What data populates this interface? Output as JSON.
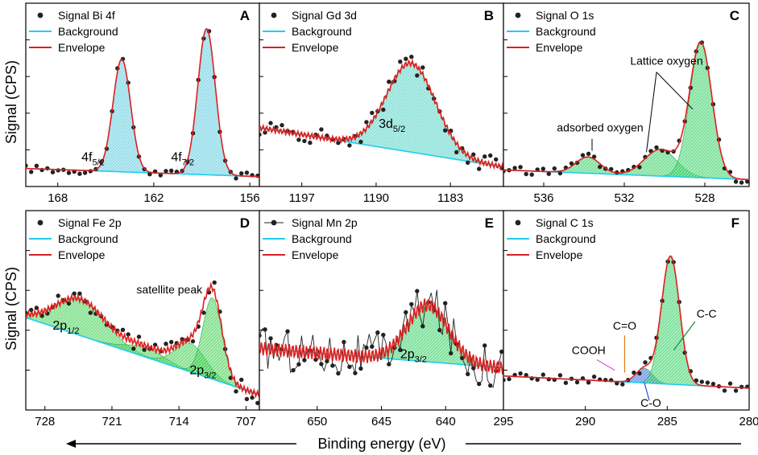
{
  "figure": {
    "ylabel": "Signal (CPS)",
    "xlabel": "Binding energy (eV)"
  },
  "chart_data": [
    {
      "type": "line",
      "label": "A",
      "legend": [
        "Signal Bi 4f",
        "Background",
        "Envelope"
      ],
      "xlim": [
        170,
        155.4
      ],
      "xticks": [
        168,
        162,
        156
      ],
      "background": {
        "start": 20,
        "end": 9
      },
      "peaks": [
        {
          "name": "4f5/2",
          "center": 164.0,
          "height": 152,
          "width": 0.55
        },
        {
          "name": "4f7/2",
          "center": 158.7,
          "height": 197,
          "width": 0.55
        }
      ],
      "ymax": 230,
      "fill": "#4fc6dd",
      "annotations": [
        {
          "text": "4f",
          "sub": "5/2",
          "x": 165.8,
          "y": 30
        },
        {
          "text": "4f",
          "sub": "7/2",
          "x": 160.2,
          "y": 30
        }
      ]
    },
    {
      "type": "line",
      "label": "B",
      "legend": [
        "Signal Gd 3d",
        "Background",
        "Envelope"
      ],
      "xlim": [
        1201,
        1178
      ],
      "xticks": [
        1197,
        1190,
        1183
      ],
      "background": {
        "start": 75,
        "end": 22
      },
      "peaks": [
        {
          "name": "3d5/2",
          "center": 1186.7,
          "height": 120,
          "width": 2.3
        }
      ],
      "ymax": 230,
      "fill": "#3fd0c0",
      "annotations": [
        {
          "text": "3d",
          "sub": "5/2",
          "x": 1188.5,
          "y": 75
        }
      ]
    },
    {
      "type": "line",
      "label": "C",
      "legend": [
        "Signal O 1s",
        "Background",
        "Envelope"
      ],
      "xlim": [
        538,
        525.8
      ],
      "xticks": [
        536,
        532,
        528
      ],
      "background": {
        "start": 18,
        "end": 5
      },
      "peaks": [
        {
          "name": "adsorbed oxygen",
          "center": 533.8,
          "height": 22,
          "width": 0.6
        },
        {
          "name": "lattice 1",
          "center": 530.2,
          "height": 36,
          "width": 0.8
        },
        {
          "name": "lattice 2",
          "center": 528.2,
          "height": 182,
          "width": 0.55
        }
      ],
      "ymax": 230,
      "fill": "#22cc55",
      "annotations": [
        {
          "text": "Lattice oxygen",
          "x": 529.9,
          "y": 160
        },
        {
          "text": "adsorbed oxygen",
          "x": 533.2,
          "y": 70
        }
      ]
    },
    {
      "type": "line",
      "label": "D",
      "legend": [
        "Signal Fe 2p",
        "Background",
        "Envelope"
      ],
      "xlim": [
        730,
        705.6
      ],
      "xticks": [
        728,
        721,
        714,
        707
      ],
      "background": {
        "start": 110,
        "end": 15
      },
      "peaks": [
        {
          "name": "2p1/2",
          "center": 724.3,
          "height": 45,
          "width": 2.6
        },
        {
          "name": "satellite",
          "center": 717.5,
          "height": 12,
          "width": 2.0
        },
        {
          "name": "2p3/2 a",
          "center": 712.8,
          "height": 35,
          "width": 1.6
        },
        {
          "name": "2p3/2 b",
          "center": 710.5,
          "height": 100,
          "width": 1.0
        }
      ],
      "ymax": 230,
      "fill": "#2ecc40",
      "annotations": [
        {
          "text": "2p",
          "sub": "1/2",
          "x": 725.8,
          "y": 95
        },
        {
          "text": "satellite peak",
          "x": 715.0,
          "y": 140
        },
        {
          "text": "2p",
          "sub": "3/2",
          "x": 711.5,
          "y": 40
        }
      ]
    },
    {
      "type": "line",
      "label": "E",
      "legend": [
        "Signal Mn 2p",
        "Background",
        "Envelope"
      ],
      "xlim": [
        654.5,
        635.5
      ],
      "xticks": [
        650,
        645,
        640
      ],
      "background": {
        "start": 72,
        "end": 48
      },
      "peaks": [
        {
          "name": "2p3/2",
          "center": 641.4,
          "height": 70,
          "width": 1.6
        }
      ],
      "ymax": 230,
      "fill": "#22cc55",
      "annotations": [
        {
          "text": "2p",
          "sub": "3/2",
          "x": 642.5,
          "y": 60
        }
      ]
    },
    {
      "type": "line",
      "label": "F",
      "legend": [
        "Signal C 1s",
        "Background",
        "Envelope"
      ],
      "xlim": [
        295,
        280
      ],
      "xticks": [
        295,
        290,
        285,
        280
      ],
      "background": {
        "start": 38,
        "end": 23
      },
      "peaks": [
        {
          "name": "C-O",
          "center": 286.4,
          "height": 18,
          "width": 0.5
        },
        {
          "name": "C-C",
          "center": 284.8,
          "height": 158,
          "width": 0.55
        }
      ],
      "ymax": 230,
      "fill": "#22cc55",
      "annotations": [
        {
          "text": "COOH",
          "x": 289.8,
          "y": 65
        },
        {
          "text": "C=O",
          "x": 287.6,
          "y": 95
        },
        {
          "text": "C-C",
          "x": 282.6,
          "y": 110
        },
        {
          "text": "C-O",
          "x": 286.0,
          "y": 0
        }
      ]
    }
  ]
}
